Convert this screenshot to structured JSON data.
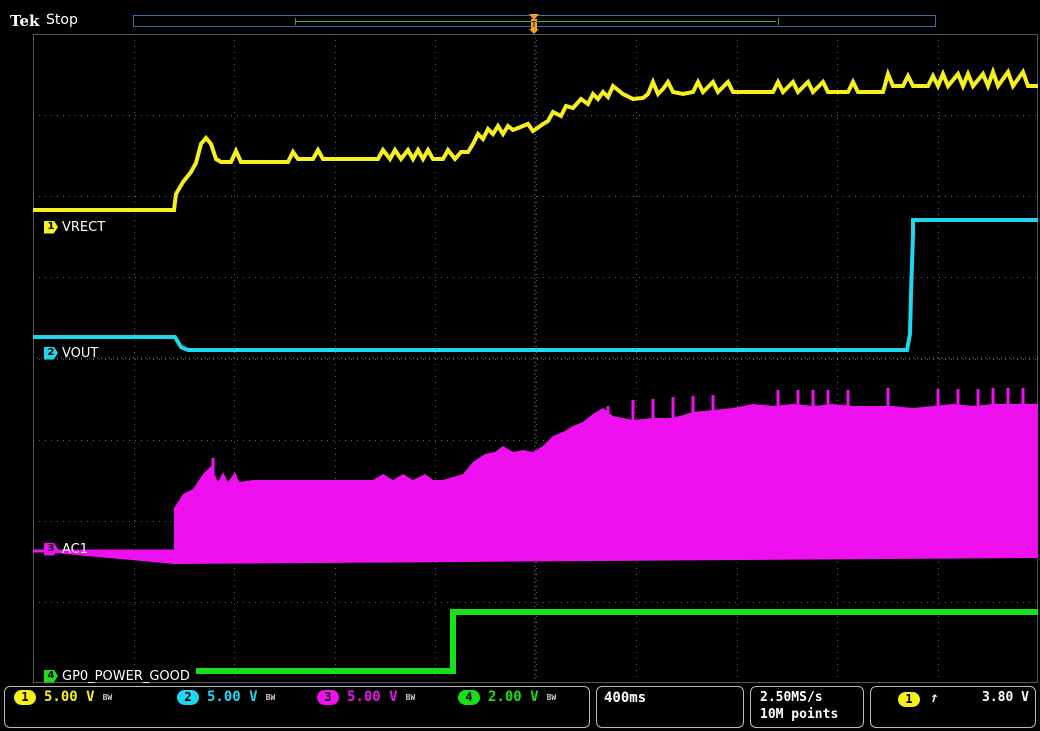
{
  "header": {
    "brand": "Tek",
    "acquisition_state": "Stop",
    "trigger_marker_label": "T"
  },
  "channels": [
    {
      "num": "1",
      "name": "VRECT",
      "scale": "5.00 V",
      "color": "#f5f01e"
    },
    {
      "num": "2",
      "name": "VOUT",
      "scale": "5.00 V",
      "color": "#1ed8f0"
    },
    {
      "num": "3",
      "name": "AC1",
      "scale": "5.00 V",
      "color": "#ee10ee"
    },
    {
      "num": "4",
      "name": "GP0_POWER_GOOD",
      "scale": "2.00 V",
      "color": "#18e018"
    }
  ],
  "bw_label": "BW",
  "timebase": {
    "scale": "400ms"
  },
  "acquisition": {
    "sample_rate": "2.50MS/s",
    "record_length": "10M points"
  },
  "trigger": {
    "source": "1",
    "slope_symbol": "↑",
    "level": "3.80 V"
  },
  "icons": {
    "trigger_position": "trigger-position-marker-icon",
    "trigger_slope": "rising-edge-icon"
  }
}
